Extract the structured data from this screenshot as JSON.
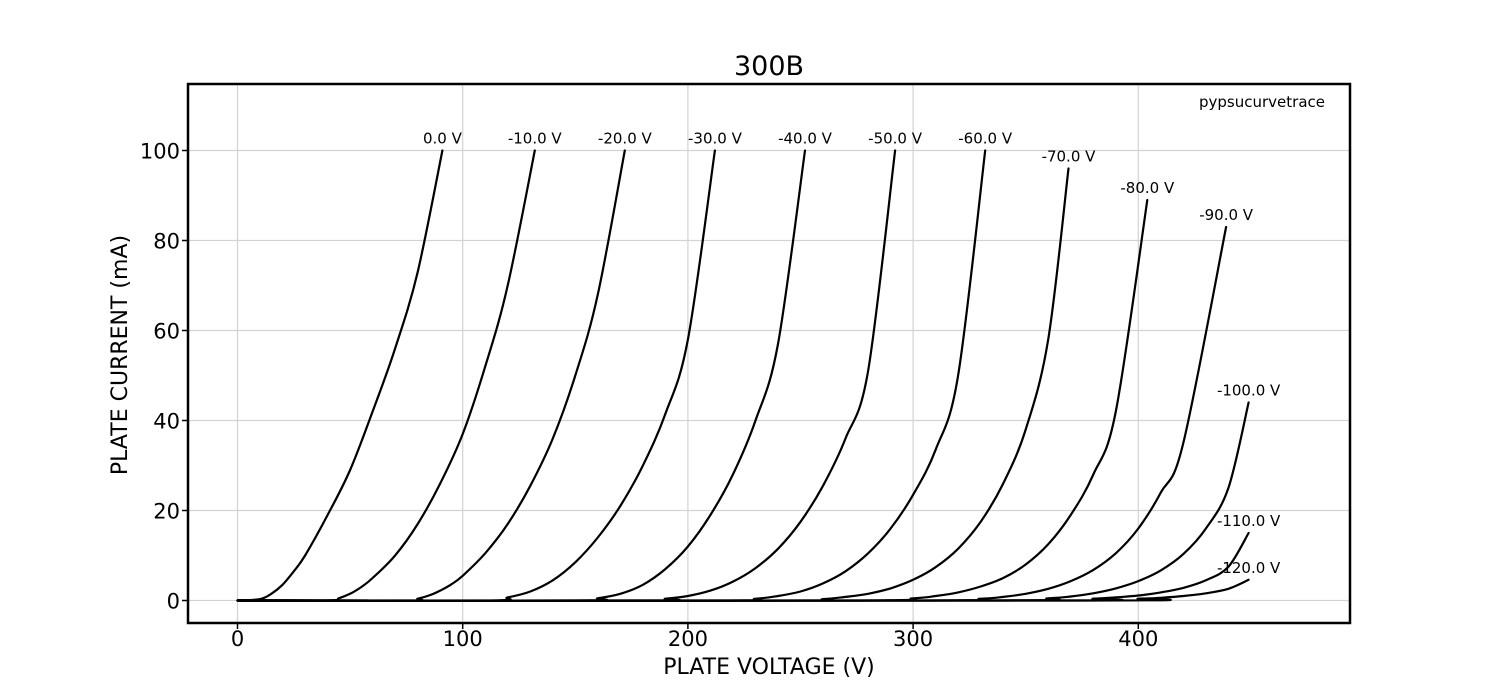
{
  "chart_data": {
    "type": "line",
    "title": "300B",
    "xlabel": "PLATE VOLTAGE (V)",
    "ylabel": "PLATE CURRENT (mA)",
    "annotation": "pypsucurvetrace",
    "xlim": [
      -22,
      493
    ],
    "ylim": [
      -5,
      115
    ],
    "xticks": [
      0,
      100,
      200,
      300,
      400
    ],
    "yticks": [
      0,
      20,
      40,
      60,
      80,
      100
    ],
    "grid": true,
    "series": [
      {
        "name": "0.0 V",
        "x": [
          0,
          10,
          15,
          20,
          25,
          30,
          40,
          50,
          60,
          70,
          80,
          91
        ],
        "y": [
          0,
          0.3,
          1.5,
          3.5,
          6.5,
          10,
          19,
          29,
          42,
          56,
          73,
          100
        ]
      },
      {
        "name": "-10.0 V",
        "x": [
          0,
          40,
          45,
          50,
          55,
          60,
          70,
          80,
          90,
          100,
          110,
          120,
          132
        ],
        "y": [
          0,
          0,
          0.5,
          1.5,
          3,
          5,
          10,
          17,
          26,
          37,
          52,
          70,
          100
        ]
      },
      {
        "name": "-20.0 V",
        "x": [
          0,
          75,
          80,
          85,
          90,
          95,
          100,
          110,
          120,
          130,
          140,
          150,
          160,
          172
        ],
        "y": [
          0,
          0,
          0.4,
          1.1,
          2.2,
          3.6,
          5.5,
          10.5,
          17,
          25.5,
          36,
          50,
          68,
          100
        ]
      },
      {
        "name": "-30.0 V",
        "x": [
          0,
          110,
          120,
          130,
          140,
          150,
          160,
          170,
          180,
          190,
          200,
          212
        ],
        "y": [
          0,
          0,
          0.7,
          2,
          4.5,
          8.5,
          14,
          21,
          30,
          41.5,
          58,
          100
        ]
      },
      {
        "name": "-40.0 V",
        "x": [
          0,
          150,
          160,
          170,
          180,
          190,
          200,
          210,
          220,
          230,
          240,
          252
        ],
        "y": [
          0,
          0,
          0.5,
          1.5,
          3.5,
          7,
          12,
          19,
          28,
          40,
          57,
          100
        ]
      },
      {
        "name": "-50.0 V",
        "x": [
          0,
          180,
          190,
          200,
          210,
          220,
          230,
          240,
          250,
          260,
          270,
          280,
          292
        ],
        "y": [
          0,
          0,
          0.4,
          1,
          2.2,
          4.2,
          7.2,
          11.5,
          17.5,
          25.5,
          36,
          51,
          100
        ]
      },
      {
        "name": "-60.0 V",
        "x": [
          0,
          210,
          230,
          240,
          250,
          260,
          270,
          280,
          290,
          300,
          310,
          320,
          332
        ],
        "y": [
          0,
          0,
          0.4,
          1,
          2,
          3.8,
          6.5,
          10.5,
          16,
          23.5,
          33.5,
          50,
          100
        ]
      },
      {
        "name": "-70.0 V",
        "x": [
          0,
          240,
          260,
          270,
          280,
          290,
          300,
          310,
          320,
          330,
          340,
          350,
          360,
          369
        ],
        "y": [
          0,
          0,
          0.3,
          0.8,
          1.5,
          2.7,
          4.6,
          7.4,
          11.5,
          17.5,
          26,
          38,
          58,
          96
        ]
      },
      {
        "name": "-80.0 V",
        "x": [
          0,
          270,
          300,
          310,
          320,
          330,
          340,
          350,
          360,
          370,
          380,
          390,
          404
        ],
        "y": [
          0,
          0,
          0.5,
          1,
          1.8,
          3.1,
          5,
          8,
          12.5,
          19,
          28,
          42,
          89
        ]
      },
      {
        "name": "-90.0 V",
        "x": [
          0,
          300,
          330,
          340,
          350,
          360,
          370,
          380,
          390,
          400,
          410,
          420,
          439
        ],
        "y": [
          0,
          0,
          0.4,
          0.8,
          1.5,
          2.6,
          4.3,
          6.8,
          10.5,
          16,
          24,
          35,
          83
        ]
      },
      {
        "name": "-100.0 V",
        "x": [
          0,
          330,
          360,
          370,
          380,
          390,
          400,
          410,
          420,
          430,
          440,
          449
        ],
        "y": [
          0,
          0,
          0.5,
          0.9,
          1.6,
          2.7,
          4.3,
          6.7,
          10.3,
          16,
          25,
          44
        ]
      },
      {
        "name": "-110.0 V",
        "x": [
          0,
          360,
          380,
          390,
          400,
          410,
          420,
          430,
          440,
          449
        ],
        "y": [
          0,
          0,
          0.4,
          0.7,
          1.1,
          1.8,
          2.8,
          4.5,
          7.5,
          15
        ]
      },
      {
        "name": "-120.0 V",
        "x": [
          0,
          380,
          400,
          410,
          420,
          430,
          440,
          449
        ],
        "y": [
          0,
          0,
          0.4,
          0.6,
          1,
          1.6,
          2.6,
          4.6
        ]
      }
    ]
  }
}
